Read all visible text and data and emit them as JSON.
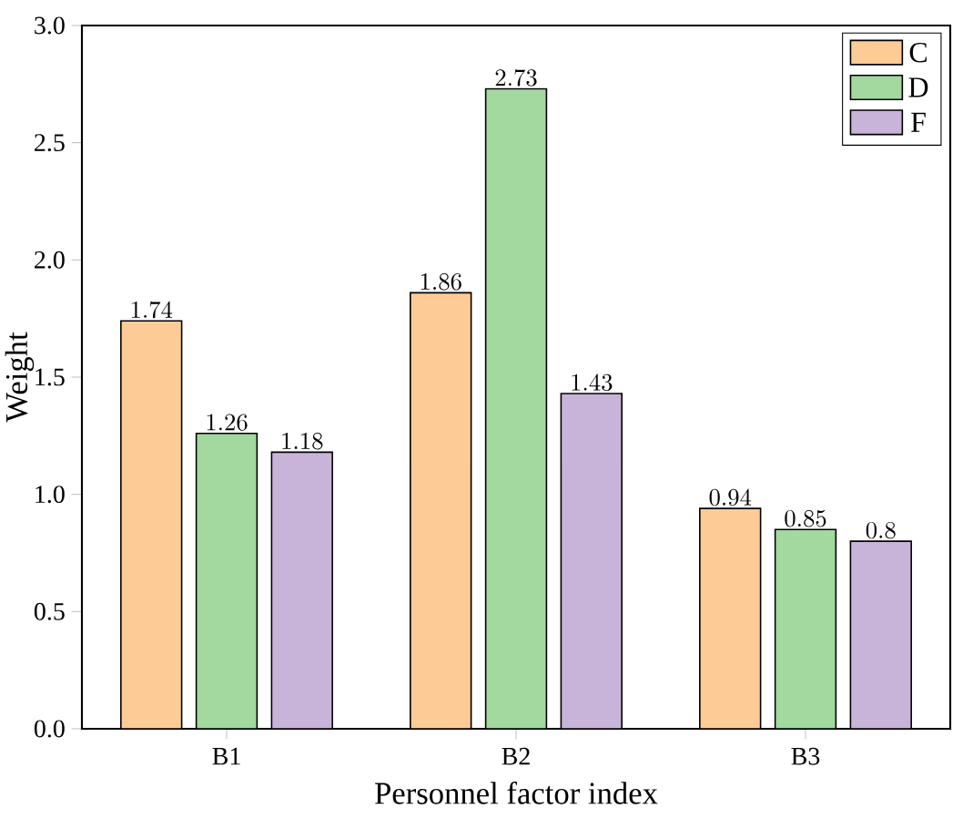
{
  "chart_data": {
    "type": "bar",
    "xlabel": "Personnel factor index",
    "ylabel": "Weight",
    "categories": [
      "B1",
      "B2",
      "B3"
    ],
    "series": [
      {
        "name": "C",
        "color": "#fdcc96",
        "values": [
          1.74,
          1.86,
          0.94
        ]
      },
      {
        "name": "D",
        "color": "#a3d89f",
        "values": [
          1.26,
          2.73,
          0.85
        ]
      },
      {
        "name": "F",
        "color": "#c8b4d8",
        "values": [
          1.18,
          1.43,
          0.8
        ]
      }
    ],
    "ylim": [
      0,
      3.0
    ],
    "yticks": [
      {
        "value": 0,
        "label": "0.0"
      },
      {
        "value": 0.5,
        "label": "0.5"
      },
      {
        "value": 1,
        "label": "1.0"
      },
      {
        "value": 1.5,
        "label": "1.5"
      },
      {
        "value": 2,
        "label": "2.0"
      },
      {
        "value": 2.5,
        "label": "2.5"
      },
      {
        "value": 3,
        "label": "3.0"
      }
    ],
    "data_labels": true,
    "legend": "top right",
    "grid": false
  }
}
